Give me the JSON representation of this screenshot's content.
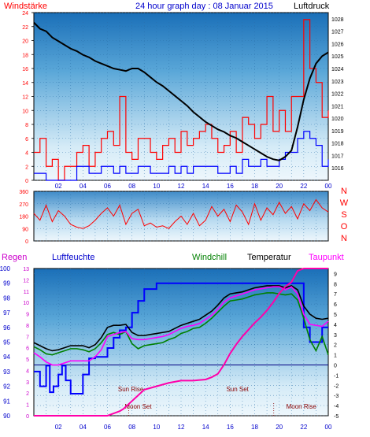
{
  "chart_data": [
    {
      "type": "line",
      "panel": "wind_pressure",
      "title": "24 hour graph day : 08 Januar 2015",
      "left_label": "Windstärke",
      "right_label": "Luftdruck",
      "x_ticks": [
        "02",
        "04",
        "06",
        "08",
        "10",
        "12",
        "14",
        "16",
        "18",
        "20",
        "22",
        "00"
      ],
      "y_left_ticks": [
        "0",
        "2",
        "4",
        "6",
        "8",
        "10",
        "12",
        "14",
        "16",
        "18",
        "20",
        "22",
        "24"
      ],
      "y_right_ticks": [
        "1016",
        "1017",
        "1018",
        "1019",
        "1020",
        "1021",
        "1022",
        "1023",
        "1024",
        "1025",
        "1026",
        "1027",
        "1028"
      ],
      "ylim_left": [
        0,
        24
      ],
      "ylim_right": [
        1015,
        1028.5
      ],
      "grid": true,
      "series": [
        {
          "color": "#000000",
          "axis": "right",
          "x": [
            0,
            0.5,
            1,
            1.5,
            2,
            2.5,
            3,
            3.5,
            4,
            4.5,
            5,
            5.5,
            6,
            6.5,
            7,
            7.5,
            8,
            8.5,
            9,
            9.5,
            10,
            10.5,
            11,
            11.5,
            12,
            12.5,
            13,
            13.5,
            14,
            14.5,
            15,
            15.5,
            16,
            16.5,
            17,
            17.5,
            18,
            18.5,
            19,
            19.5,
            20,
            20.5,
            21,
            21.5,
            22,
            22.5,
            23,
            23.5,
            24
          ],
          "values": [
            1027.7,
            1027.2,
            1027.0,
            1026.5,
            1026.2,
            1025.9,
            1025.6,
            1025.4,
            1025.1,
            1024.9,
            1024.6,
            1024.4,
            1024.2,
            1024.0,
            1023.9,
            1023.8,
            1024.0,
            1024.0,
            1023.7,
            1023.3,
            1022.9,
            1022.6,
            1022.2,
            1021.8,
            1021.4,
            1021.0,
            1020.5,
            1020.1,
            1019.7,
            1019.4,
            1019.1,
            1018.9,
            1018.6,
            1018.4,
            1018.1,
            1017.8,
            1017.5,
            1017.2,
            1016.9,
            1016.7,
            1016.6,
            1016.9,
            1017.4,
            1019.3,
            1021.5,
            1023.2,
            1024.4,
            1025.0,
            1025.3
          ]
        },
        {
          "color": "#ff0000",
          "axis": "left",
          "x": [
            0,
            0.5,
            1,
            1.5,
            2,
            2.5,
            3,
            3.5,
            4,
            4.5,
            5,
            5.5,
            6,
            6.5,
            7,
            7.5,
            8,
            8.5,
            9,
            9.5,
            10,
            10.5,
            11,
            11.5,
            12,
            12.5,
            13,
            13.5,
            14,
            14.5,
            15,
            15.5,
            16,
            16.5,
            17,
            17.5,
            18,
            18.5,
            19,
            19.5,
            20,
            20.5,
            21,
            21.5,
            22,
            22.5,
            23,
            23.5,
            24
          ],
          "values": [
            4,
            6,
            2,
            3,
            0,
            2,
            2,
            4,
            5,
            2,
            4,
            6,
            7,
            5,
            12,
            4,
            3,
            6,
            6,
            4,
            3,
            5,
            6,
            4,
            7,
            5,
            6,
            7,
            8,
            6,
            4,
            5,
            7,
            4,
            9,
            8,
            6,
            8,
            12,
            7,
            10,
            7,
            12,
            12,
            23,
            16,
            14,
            9,
            10
          ]
        },
        {
          "color": "#0000ff",
          "axis": "left",
          "x": [
            0,
            0.5,
            1,
            1.5,
            2,
            2.5,
            3,
            3.5,
            4,
            4.5,
            5,
            5.5,
            6,
            6.5,
            7,
            7.5,
            8,
            8.5,
            9,
            9.5,
            10,
            10.5,
            11,
            11.5,
            12,
            12.5,
            13,
            13.5,
            14,
            14.5,
            15,
            15.5,
            16,
            16.5,
            17,
            17.5,
            18,
            18.5,
            19,
            19.5,
            20,
            20.5,
            21,
            21.5,
            22,
            22.5,
            23,
            23.5,
            24
          ],
          "values": [
            1,
            1,
            0,
            0,
            0,
            0,
            0,
            2,
            2,
            1,
            1,
            2,
            2,
            1,
            2,
            1,
            1,
            2,
            2,
            1,
            1,
            1,
            2,
            1,
            2,
            1,
            2,
            2,
            2,
            2,
            1,
            1,
            2,
            1,
            3,
            2,
            2,
            3,
            2,
            2,
            3,
            4,
            4,
            6,
            7,
            6,
            5,
            2,
            3
          ]
        }
      ]
    },
    {
      "type": "line",
      "panel": "wind_direction",
      "y_left_ticks": [
        "0",
        "90",
        "180",
        "270",
        "360"
      ],
      "y_right_labels": [
        "N",
        "W",
        "S",
        "O",
        "N"
      ],
      "ylim": [
        0,
        360
      ],
      "grid": true,
      "series": [
        {
          "color": "#ff0000",
          "x": [
            0,
            0.5,
            1,
            1.5,
            2,
            2.5,
            3,
            3.5,
            4,
            4.5,
            5,
            5.5,
            6,
            6.5,
            7,
            7.5,
            8,
            8.5,
            9,
            9.5,
            10,
            10.5,
            11,
            11.5,
            12,
            12.5,
            13,
            13.5,
            14,
            14.5,
            15,
            15.5,
            16,
            16.5,
            17,
            17.5,
            18,
            18.5,
            19,
            19.5,
            20,
            20.5,
            21,
            21.5,
            22,
            22.5,
            23,
            23.5,
            24
          ],
          "values": [
            200,
            150,
            260,
            140,
            220,
            180,
            120,
            100,
            90,
            110,
            150,
            200,
            240,
            180,
            260,
            120,
            200,
            230,
            110,
            130,
            100,
            110,
            90,
            140,
            180,
            120,
            200,
            110,
            150,
            250,
            180,
            230,
            140,
            260,
            210,
            120,
            270,
            150,
            240,
            190,
            280,
            200,
            250,
            160,
            270,
            220,
            300,
            240,
            210
          ]
        }
      ]
    },
    {
      "type": "line",
      "panel": "humidity_temperature",
      "labels": {
        "rain": "Regen",
        "humidity": "Luftfeuchte",
        "windchill": "Windchill",
        "temperature": "Temperatur",
        "dewpoint": "Taupunkt"
      },
      "x_ticks": [
        "02",
        "04",
        "06",
        "08",
        "10",
        "12",
        "14",
        "16",
        "18",
        "20",
        "22",
        "00"
      ],
      "y_humidity_ticks": [
        "90",
        "91",
        "92",
        "93",
        "94",
        "95",
        "96",
        "97",
        "98",
        "99",
        "100"
      ],
      "y_rain_ticks": [
        "0",
        "1",
        "2",
        "3",
        "4",
        "5",
        "6",
        "7",
        "8",
        "9",
        "10",
        "11",
        "12",
        "13"
      ],
      "y_temp_ticks": [
        "-5",
        "-4",
        "-3",
        "-2",
        "-1",
        "0",
        "1",
        "2",
        "3",
        "4",
        "5",
        "6",
        "7",
        "8",
        "9"
      ],
      "ylim_temp": [
        -5,
        9.5
      ],
      "ylim_humidity": [
        90,
        100
      ],
      "ylim_rain": [
        0,
        13
      ],
      "annotations": [
        {
          "text": "Sun Rise",
          "x": 7.9
        },
        {
          "text": "Moon Set",
          "x": 8.5
        },
        {
          "text": "Sun Set",
          "x": 16.6
        },
        {
          "text": "Moon Rise",
          "x": 21.8
        }
      ],
      "zero_line": 0,
      "series": [
        {
          "name": "Luftfeuchte",
          "color": "#0000ff",
          "axis": "humidity",
          "x": [
            0,
            0.5,
            1,
            1.3,
            1.6,
            2,
            2.3,
            2.6,
            3,
            3.5,
            4,
            4.5,
            5,
            5.5,
            6,
            6.5,
            7,
            7.5,
            8,
            8.5,
            9,
            10,
            11,
            12,
            13,
            14,
            15,
            16,
            17,
            18,
            19,
            20,
            20.5,
            21,
            21.5,
            22,
            22.5,
            23,
            23.5,
            24
          ],
          "values": [
            93,
            92,
            93.4,
            91.6,
            92,
            92.8,
            93.4,
            92.4,
            91.5,
            91.5,
            92.8,
            93.9,
            94,
            94,
            94.6,
            95.3,
            95.8,
            96,
            97,
            97.8,
            98.6,
            99,
            99,
            99,
            99,
            99,
            99,
            99,
            99,
            99,
            99,
            99,
            99,
            99,
            99,
            96,
            95,
            95,
            96,
            96
          ]
        },
        {
          "name": "Temperatur",
          "color": "#000000",
          "axis": "temp",
          "x": [
            0,
            0.5,
            1,
            1.5,
            2,
            2.5,
            3,
            3.5,
            4,
            4.5,
            5,
            5.5,
            6,
            6.5,
            7,
            7.5,
            8,
            8.5,
            9,
            9.5,
            10,
            10.5,
            11,
            11.5,
            12,
            12.5,
            13,
            13.5,
            14,
            14.5,
            15,
            15.5,
            16,
            16.5,
            17,
            17.5,
            18,
            18.5,
            19,
            19.5,
            20,
            20.5,
            21,
            21.5,
            22,
            22.5,
            23,
            23.5,
            24
          ],
          "values": [
            2.2,
            1.9,
            1.6,
            1.4,
            1.5,
            1.7,
            1.9,
            1.9,
            1.9,
            1.7,
            2.0,
            2.7,
            3.7,
            3.9,
            3.9,
            4.0,
            3.2,
            2.9,
            2.9,
            3.0,
            3.1,
            3.2,
            3.3,
            3.6,
            3.9,
            4.1,
            4.3,
            4.5,
            4.9,
            5.3,
            5.9,
            6.6,
            7.0,
            7.1,
            7.2,
            7.4,
            7.6,
            7.7,
            7.8,
            7.8,
            7.8,
            7.6,
            7.8,
            7.4,
            5.8,
            5.0,
            4.6,
            4.5,
            4.6
          ]
        },
        {
          "name": "Windchill",
          "color": "#008000",
          "axis": "temp",
          "x": [
            0,
            0.5,
            1,
            1.5,
            2,
            2.5,
            3,
            3.5,
            4,
            4.5,
            5,
            5.5,
            6,
            6.5,
            7,
            7.5,
            8,
            8.5,
            9,
            9.5,
            10,
            10.5,
            11,
            11.5,
            12,
            12.5,
            13,
            13.5,
            14,
            14.5,
            15,
            15.5,
            16,
            16.5,
            17,
            17.5,
            18,
            18.5,
            19,
            19.5,
            20,
            20.5,
            21,
            21.5,
            22,
            22.5,
            23,
            23.5,
            24
          ],
          "values": [
            1.8,
            1.5,
            1.1,
            1.0,
            1.2,
            1.4,
            1.6,
            1.6,
            1.5,
            1.3,
            1.6,
            2.2,
            3.0,
            3.2,
            3.0,
            3.3,
            2.1,
            1.6,
            1.9,
            2.0,
            2.1,
            2.2,
            2.5,
            2.7,
            3.1,
            3.3,
            3.6,
            3.7,
            4.1,
            4.6,
            5.2,
            5.8,
            6.3,
            6.4,
            6.5,
            6.7,
            6.9,
            7.0,
            7.1,
            7.1,
            7.0,
            6.9,
            7.0,
            6.4,
            4.6,
            2.5,
            1.4,
            2.8,
            1.0
          ]
        },
        {
          "name": "Taupunkt",
          "color": "#ff00ff",
          "axis": "temp",
          "x": [
            0,
            0.5,
            1,
            1.5,
            2,
            2.5,
            3,
            3.5,
            4,
            4.5,
            5,
            5.5,
            6,
            6.5,
            7,
            7.5,
            8,
            8.5,
            9,
            9.5,
            10,
            10.5,
            11,
            11.5,
            12,
            12.5,
            13,
            13.5,
            14,
            14.5,
            15,
            15.5,
            16,
            16.5,
            17,
            17.5,
            18,
            18.5,
            19,
            19.5,
            20,
            20.5,
            21,
            21.5,
            22,
            22.5,
            23,
            23.5,
            24
          ],
          "values": [
            1.2,
            0.8,
            0.3,
            0.0,
            0.0,
            0.2,
            0.4,
            0.4,
            0.4,
            0.4,
            0.8,
            1.5,
            2.8,
            3.0,
            3.2,
            3.3,
            2.6,
            2.5,
            2.5,
            2.6,
            2.7,
            2.8,
            3.0,
            3.3,
            3.6,
            3.8,
            3.9,
            4.1,
            4.5,
            4.9,
            5.5,
            6.2,
            6.6,
            6.8,
            7.0,
            7.2,
            7.4,
            7.5,
            7.6,
            7.7,
            7.7,
            7.4,
            7.7,
            7.0,
            5.0,
            4.0,
            3.9,
            3.8,
            4.3
          ]
        },
        {
          "name": "Regen",
          "color": "#ff00aa",
          "axis": "rain",
          "x": [
            0,
            5,
            6,
            6.5,
            7,
            7.3,
            7.6,
            8,
            8.5,
            9,
            10,
            11,
            12,
            13,
            14,
            14.5,
            15,
            15.5,
            16,
            16.5,
            17,
            17.5,
            18,
            18.5,
            19,
            19.5,
            20,
            20.5,
            21,
            21.5,
            22,
            24
          ],
          "values": [
            0,
            0,
            0,
            0.2,
            0.4,
            0.6,
            0.9,
            1.3,
            1.8,
            2.3,
            2.6,
            2.9,
            3.1,
            3.1,
            3.2,
            3.4,
            3.7,
            4.5,
            5.5,
            6.3,
            7.0,
            7.6,
            8.2,
            8.7,
            9.3,
            10.0,
            10.8,
            11.4,
            11.8,
            12.8,
            13,
            13
          ]
        }
      ]
    }
  ]
}
